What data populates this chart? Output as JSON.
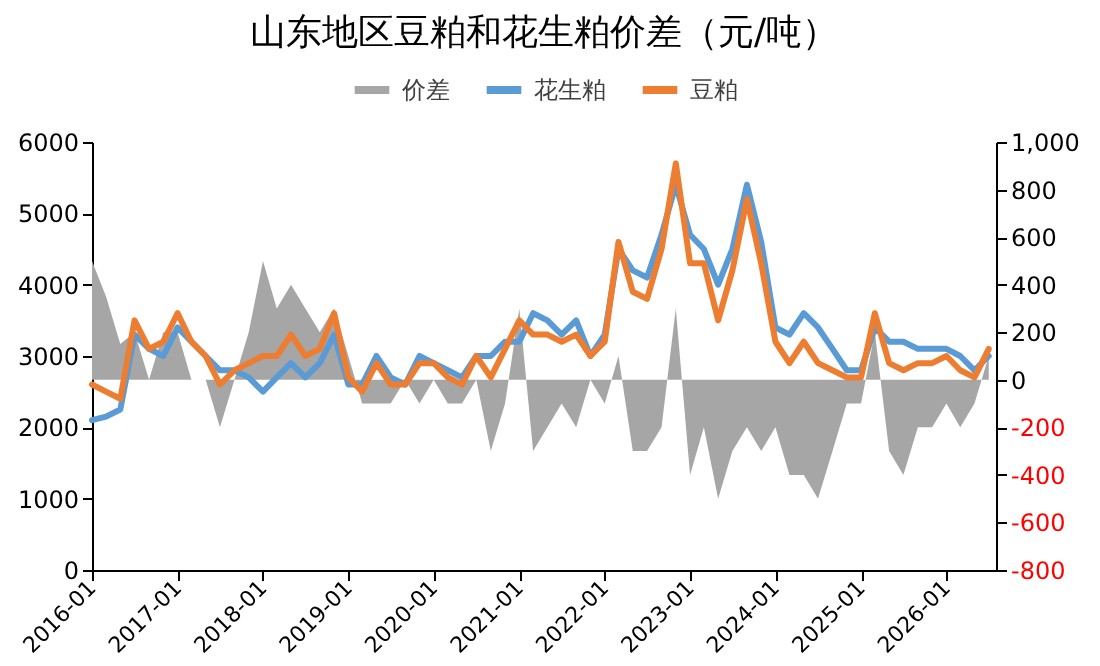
{
  "chart_data": {
    "type": "line",
    "title": "山东地区豆粕和花生粕价差（元/吨）",
    "x": [
      "2016-01",
      "2016-03",
      "2016-05",
      "2016-07",
      "2016-09",
      "2016-11",
      "2017-01",
      "2017-03",
      "2017-05",
      "2017-07",
      "2017-09",
      "2017-11",
      "2018-01",
      "2018-03",
      "2018-05",
      "2018-07",
      "2018-09",
      "2018-11",
      "2019-01",
      "2019-03",
      "2019-05",
      "2019-07",
      "2019-09",
      "2019-11",
      "2020-01",
      "2020-03",
      "2020-05",
      "2020-07",
      "2020-09",
      "2020-11",
      "2021-01",
      "2021-03",
      "2021-05",
      "2021-07",
      "2021-09",
      "2021-11",
      "2022-01",
      "2022-03",
      "2022-05",
      "2022-07",
      "2022-09",
      "2022-11",
      "2023-01",
      "2023-03",
      "2023-05",
      "2023-07",
      "2023-09",
      "2023-11",
      "2024-01",
      "2024-03",
      "2024-05",
      "2024-07",
      "2024-09",
      "2024-11",
      "2025-01",
      "2025-03",
      "2025-05",
      "2025-07",
      "2025-09",
      "2025-11",
      "2026-01",
      "2026-03",
      "2026-05",
      "2026-07"
    ],
    "series": [
      {
        "name": "价差",
        "type": "area",
        "axis": "y2",
        "color": "#a6a6a6",
        "values": [
          500,
          350,
          150,
          200,
          0,
          200,
          200,
          0,
          0,
          -200,
          0,
          200,
          500,
          300,
          400,
          300,
          200,
          300,
          100,
          -100,
          -100,
          -100,
          0,
          -100,
          0,
          -100,
          -100,
          0,
          -300,
          -100,
          300,
          -300,
          -200,
          -100,
          -200,
          0,
          -100,
          100,
          -300,
          -300,
          -200,
          300,
          -400,
          -200,
          -500,
          -300,
          -200,
          -300,
          -200,
          -400,
          -400,
          -500,
          -300,
          -100,
          -100,
          200,
          -300,
          -400,
          -200,
          -200,
          -100,
          -200,
          -100,
          100
        ]
      },
      {
        "name": "花生粕",
        "type": "line",
        "color": "#5b9bd5",
        "values": [
          2100,
          2150,
          2250,
          3300,
          3100,
          3000,
          3400,
          3200,
          3000,
          2800,
          2800,
          2700,
          2500,
          2700,
          2900,
          2700,
          2900,
          3300,
          2600,
          2600,
          3000,
          2700,
          2600,
          3000,
          2900,
          2800,
          2700,
          3000,
          3000,
          3200,
          3200,
          3600,
          3500,
          3300,
          3500,
          3000,
          3300,
          4500,
          4200,
          4100,
          4700,
          5400,
          4700,
          4500,
          4000,
          4500,
          5400,
          4600,
          3400,
          3300,
          3600,
          3400,
          3100,
          2800,
          2800,
          3400,
          3200,
          3200,
          3100,
          3100,
          3100,
          3000,
          2800,
          3000
        ]
      },
      {
        "name": "豆粕",
        "type": "line",
        "color": "#ed7d31",
        "values": [
          2600,
          2500,
          2400,
          3500,
          3100,
          3200,
          3600,
          3200,
          3000,
          2600,
          2800,
          2900,
          3000,
          3000,
          3300,
          3000,
          3100,
          3600,
          2700,
          2500,
          2900,
          2600,
          2600,
          2900,
          2900,
          2700,
          2600,
          3000,
          2700,
          3100,
          3500,
          3300,
          3300,
          3200,
          3300,
          3000,
          3200,
          4600,
          3900,
          3800,
          4500,
          5700,
          4300,
          4300,
          3500,
          4200,
          5200,
          4300,
          3200,
          2900,
          3200,
          2900,
          2800,
          2700,
          2700,
          3600,
          2900,
          2800,
          2900,
          2900,
          3000,
          2800,
          2700,
          3100
        ]
      }
    ],
    "xlim": [
      "2016-01",
      "2026-08"
    ],
    "xticks": [
      "2016-01",
      "2017-01",
      "2018-01",
      "2019-01",
      "2020-01",
      "2021-01",
      "2022-01",
      "2023-01",
      "2024-01",
      "2025-01",
      "2026-01"
    ],
    "ylim": [
      0,
      6000
    ],
    "yticks": [
      0,
      1000,
      2000,
      3000,
      4000,
      5000,
      6000
    ],
    "y2lim": [
      -800,
      1000
    ],
    "y2ticks": [
      -800,
      -600,
      -400,
      -200,
      0,
      200,
      400,
      600,
      800,
      {
        "value": 1000,
        "label": "1,000"
      }
    ],
    "grid": false,
    "legend": "top"
  }
}
